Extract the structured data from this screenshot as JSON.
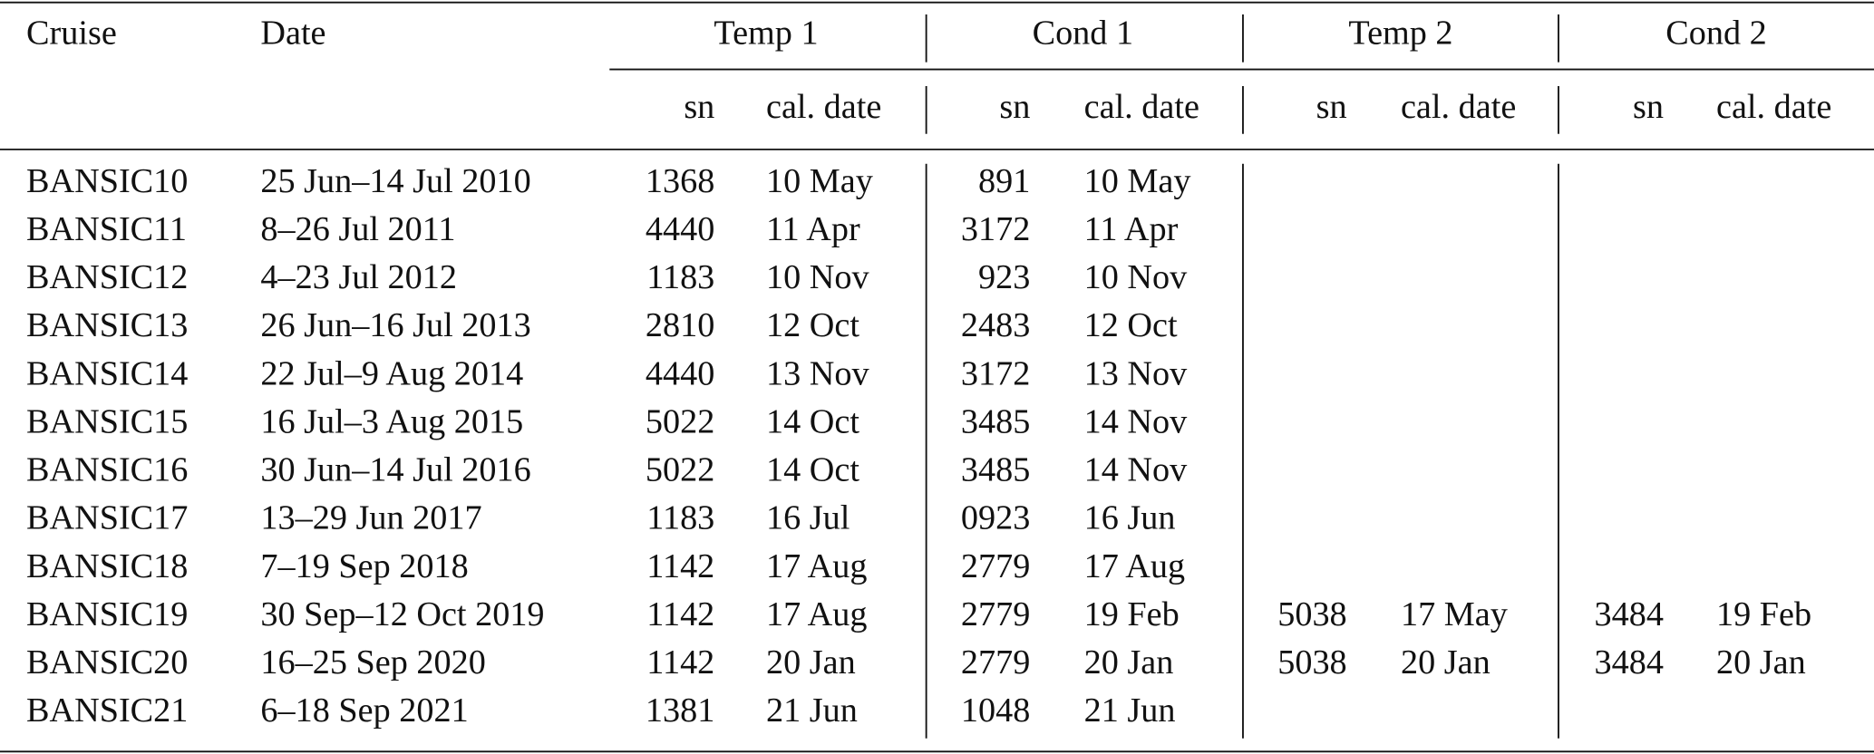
{
  "header": {
    "columns": [
      "Cruise",
      "Date"
    ],
    "groups": [
      {
        "label": "Temp 1",
        "sub": [
          "sn",
          "cal. date"
        ]
      },
      {
        "label": "Cond 1",
        "sub": [
          "sn",
          "cal. date"
        ]
      },
      {
        "label": "Temp 2",
        "sub": [
          "sn",
          "cal. date"
        ]
      },
      {
        "label": "Cond 2",
        "sub": [
          "sn",
          "cal. date"
        ]
      }
    ]
  },
  "table": {
    "rows": [
      [
        "BANSIC10",
        "25 Jun–14 Jul 2010",
        "1368",
        "10 May",
        "891",
        "10 May",
        null,
        null,
        null,
        null
      ],
      [
        "BANSIC11",
        "8–26 Jul 2011",
        "4440",
        "11 Apr",
        "3172",
        "11 Apr",
        null,
        null,
        null,
        null
      ],
      [
        "BANSIC12",
        "4–23 Jul 2012",
        "1183",
        "10 Nov",
        "923",
        "10 Nov",
        null,
        null,
        null,
        null
      ],
      [
        "BANSIC13",
        "26 Jun–16 Jul 2013",
        "2810",
        "12 Oct",
        "2483",
        "12 Oct",
        null,
        null,
        null,
        null
      ],
      [
        "BANSIC14",
        "22 Jul–9 Aug 2014",
        "4440",
        "13 Nov",
        "3172",
        "13 Nov",
        null,
        null,
        null,
        null
      ],
      [
        "BANSIC15",
        "16 Jul–3 Aug 2015",
        "5022",
        "14 Oct",
        "3485",
        "14 Nov",
        null,
        null,
        null,
        null
      ],
      [
        "BANSIC16",
        "30 Jun–14 Jul 2016",
        "5022",
        "14 Oct",
        "3485",
        "14 Nov",
        null,
        null,
        null,
        null
      ],
      [
        "BANSIC17",
        "13–29 Jun 2017",
        "1183",
        "16 Jul",
        "0923",
        "16 Jun",
        null,
        null,
        null,
        null
      ],
      [
        "BANSIC18",
        "7–19 Sep 2018",
        "1142",
        "17 Aug",
        "2779",
        "17 Aug",
        null,
        null,
        null,
        null
      ],
      [
        "BANSIC19",
        "30 Sep–12 Oct 2019",
        "1142",
        "17 Aug",
        "2779",
        "19 Feb",
        "5038",
        "17 May",
        "3484",
        "19 Feb"
      ],
      [
        "BANSIC20",
        "16–25 Sep 2020",
        "1142",
        "20 Jan",
        "2779",
        "20 Jan",
        "5038",
        "20 Jan",
        "3484",
        "20 Jan"
      ],
      [
        "BANSIC21",
        "6–18 Sep 2021",
        "1381",
        "21 Jun",
        "1048",
        "21 Jun",
        null,
        null,
        null,
        null
      ]
    ]
  }
}
